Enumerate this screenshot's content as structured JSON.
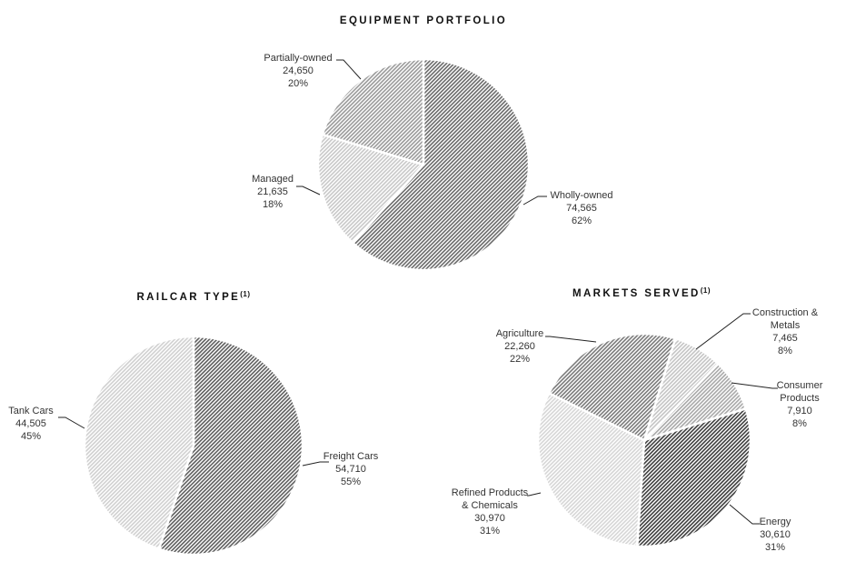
{
  "chart_data": [
    {
      "type": "pie",
      "title": "EQUIPMENT PORTFOLIO",
      "title_sup": "",
      "start_angle_deg": 0,
      "slices": [
        {
          "label": "Wholly-owned",
          "value": 74565,
          "value_text": "74,565",
          "percent": "62%",
          "fill": "#6a6a6a"
        },
        {
          "label": "Managed",
          "value": 21635,
          "value_text": "21,635",
          "percent": "18%",
          "fill": "#c8c8c8"
        },
        {
          "label": "Partially-owned",
          "value": 24650,
          "value_text": "24,650",
          "percent": "20%",
          "fill": "#9a9a9a"
        }
      ]
    },
    {
      "type": "pie",
      "title": "RAILCAR TYPE",
      "title_sup": "(1)",
      "start_angle_deg": 0,
      "slices": [
        {
          "label": "Freight Cars",
          "value": 54710,
          "value_text": "54,710",
          "percent": "55%",
          "fill": "#5e5e5e"
        },
        {
          "label": "Tank Cars",
          "value": 44505,
          "value_text": "44,505",
          "percent": "45%",
          "fill": "#d0d0d0"
        }
      ]
    },
    {
      "type": "pie",
      "title": "MARKETS SERVED",
      "title_sup": "(1)",
      "start_angle_deg": 17,
      "slices": [
        {
          "label": "Construction & Metals",
          "value": 7465,
          "value_text": "7,465",
          "percent": "8%",
          "fill": "#c4c4c4"
        },
        {
          "label": "Consumer Products",
          "value": 7910,
          "value_text": "7,910",
          "percent": "8%",
          "fill": "#a8a8a8"
        },
        {
          "label": "Energy",
          "value": 30610,
          "value_text": "30,610",
          "percent": "31%",
          "fill": "#3e3e3e"
        },
        {
          "label": "Refined Products & Chemicals",
          "value": 30970,
          "value_text": "30,970",
          "percent": "31%",
          "fill": "#d6d6d6"
        },
        {
          "label": "Agriculture",
          "value": 22260,
          "value_text": "22,260",
          "percent": "22%",
          "fill": "#7a7a7a"
        }
      ]
    }
  ]
}
